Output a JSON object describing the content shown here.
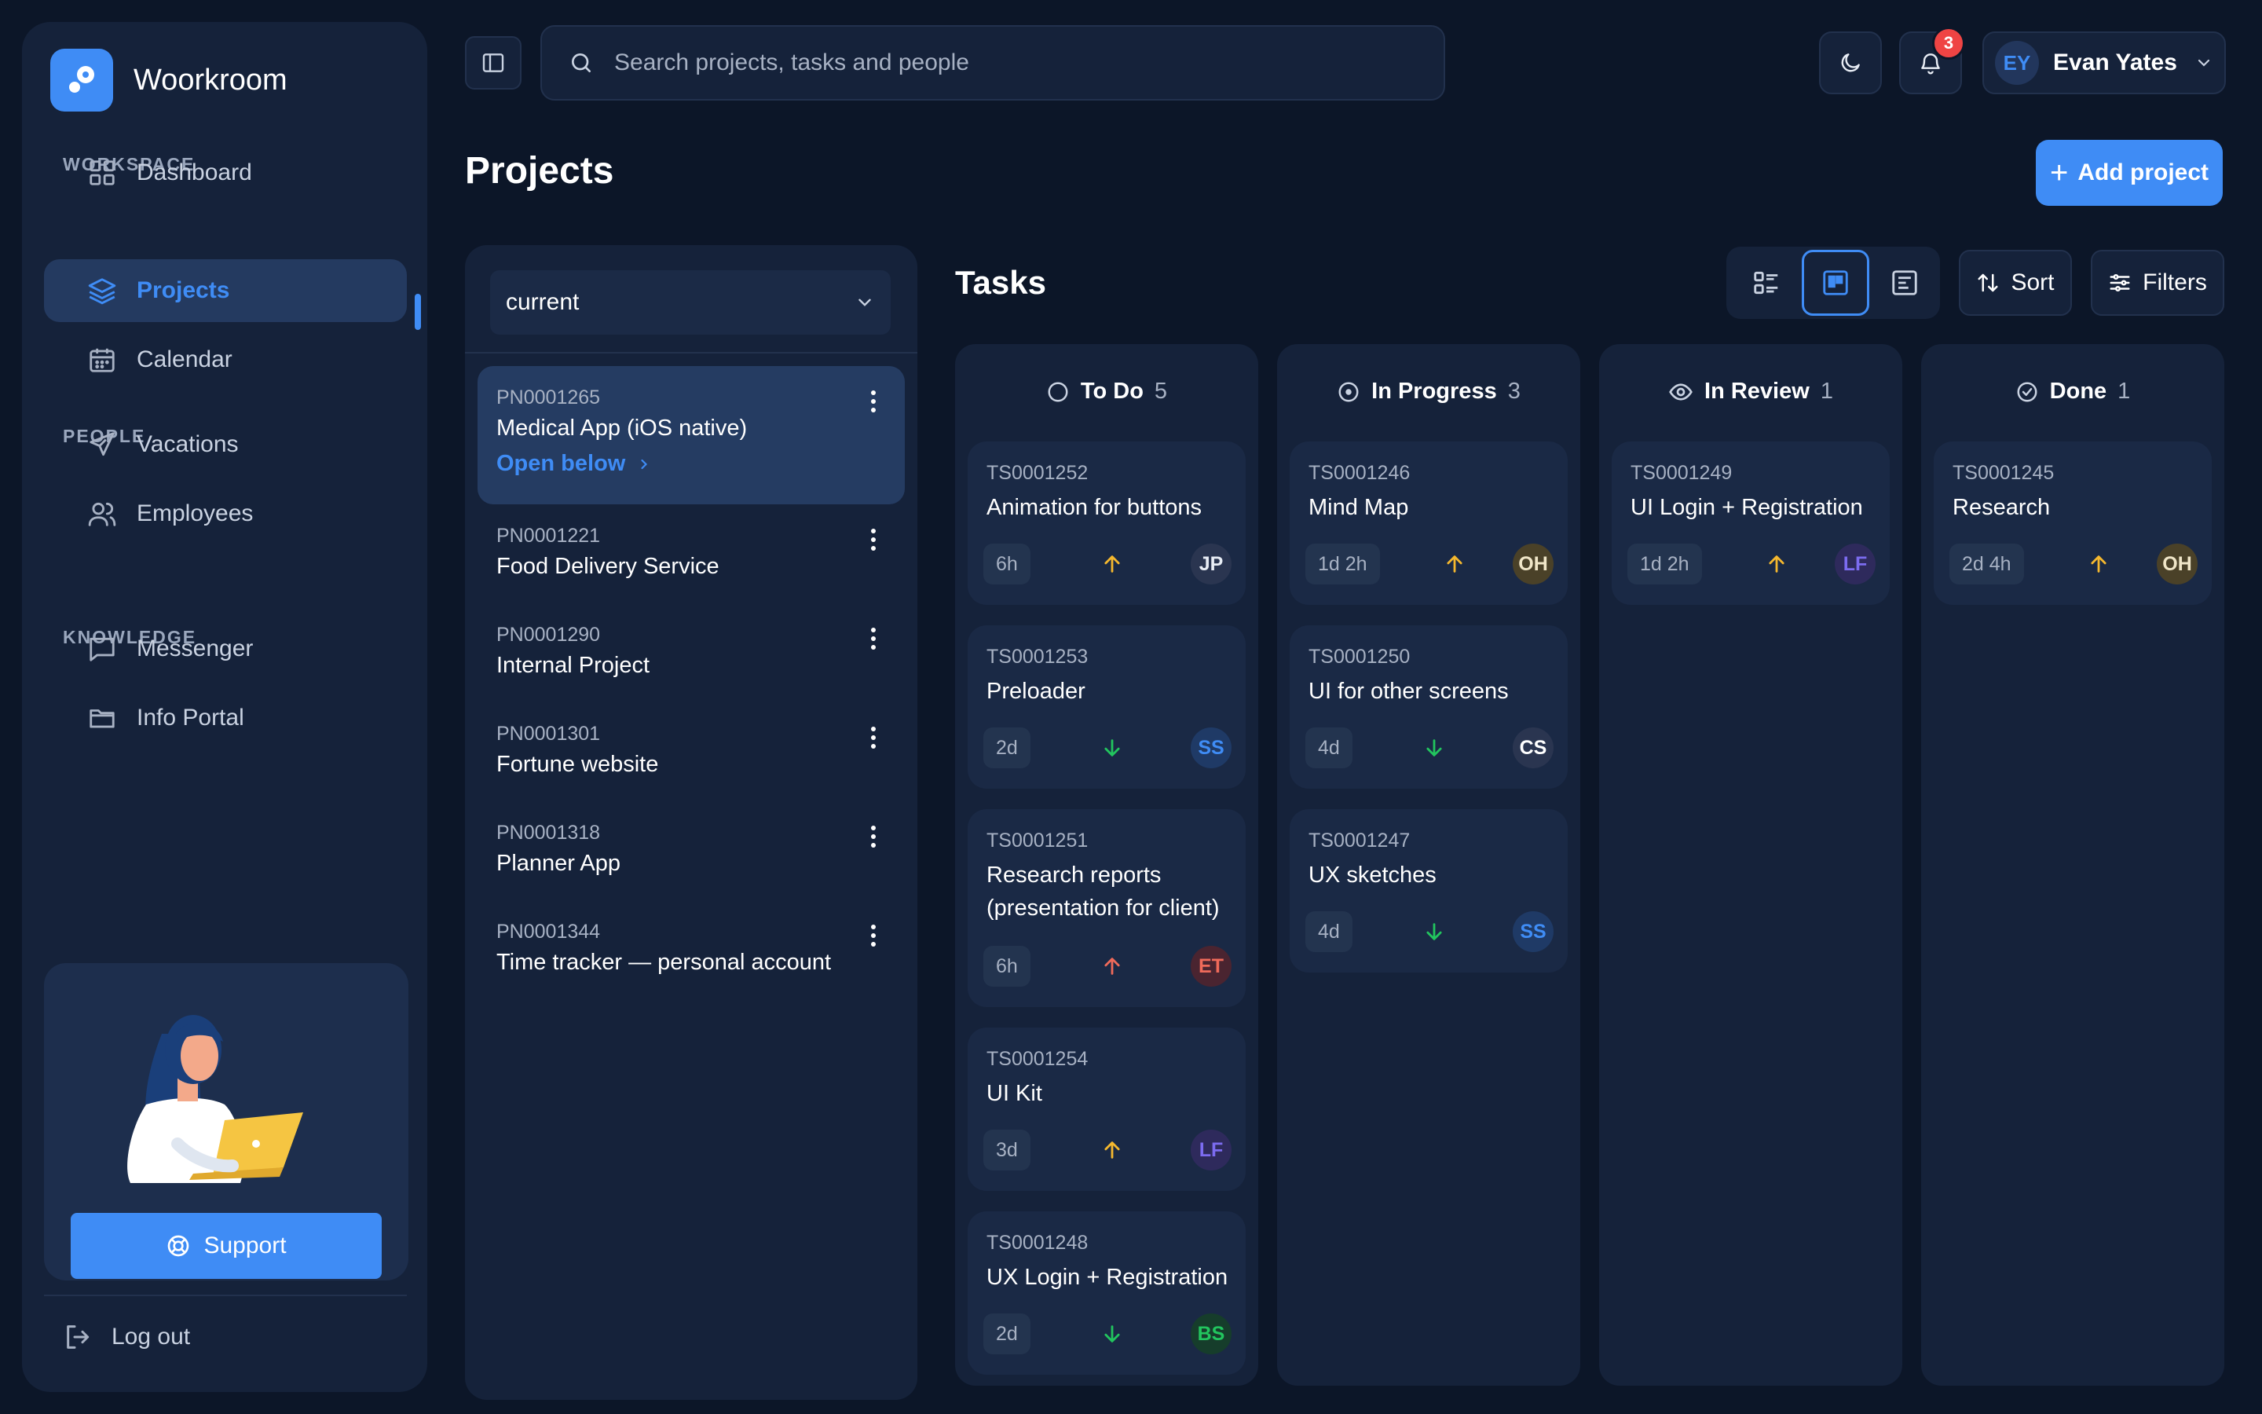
{
  "app": {
    "name": "Woorkroom"
  },
  "sidebar": {
    "sections": [
      {
        "label": "WORKSPACE"
      },
      {
        "label": "PEOPLE"
      },
      {
        "label": "KNOWLEDGE"
      }
    ],
    "items": [
      {
        "label": "Dashboard",
        "icon": "dashboard-icon"
      },
      {
        "label": "Projects",
        "icon": "layers-icon",
        "active": true
      },
      {
        "label": "Calendar",
        "icon": "calendar-icon"
      },
      {
        "label": "Vacations",
        "icon": "plane-icon"
      },
      {
        "label": "Employees",
        "icon": "users-icon"
      },
      {
        "label": "Messenger",
        "icon": "message-icon"
      },
      {
        "label": "Info Portal",
        "icon": "folder-icon"
      }
    ],
    "support_label": "Support",
    "logout_label": "Log out"
  },
  "topbar": {
    "search_placeholder": "Search projects, tasks and people",
    "notifications_count": "3",
    "user": {
      "initials": "EY",
      "name": "Evan Yates"
    }
  },
  "page": {
    "title": "Projects",
    "add_button": "Add project"
  },
  "projects": {
    "filter_value": "current",
    "open_below_label": "Open below",
    "list": [
      {
        "id": "PN0001265",
        "name": "Medical App (iOS native)",
        "active": true
      },
      {
        "id": "PN0001221",
        "name": "Food Delivery Service"
      },
      {
        "id": "PN0001290",
        "name": "Internal Project"
      },
      {
        "id": "PN0001301",
        "name": "Fortune website"
      },
      {
        "id": "PN0001318",
        "name": "Planner App"
      },
      {
        "id": "PN0001344",
        "name": "Time tracker — personal account"
      }
    ]
  },
  "tasks": {
    "title": "Tasks",
    "sort_label": "Sort",
    "filters_label": "Filters",
    "colors": {
      "up": "#f5b82e",
      "down": "#22c55e",
      "high": "#ef6a5a",
      "accent": "#3f8cf5"
    },
    "columns": [
      {
        "title": "To Do",
        "count": "5",
        "icon": "circle-icon",
        "cards": [
          {
            "id": "TS0001252",
            "name": "Animation for buttons",
            "estimate": "6h",
            "priority": "up",
            "assignee": "JP"
          },
          {
            "id": "TS0001253",
            "name": "Preloader",
            "estimate": "2d",
            "priority": "down",
            "assignee": "SS"
          },
          {
            "id": "TS0001251",
            "name": "Research reports (presentation for client)",
            "estimate": "6h",
            "priority": "high",
            "assignee": "ET"
          },
          {
            "id": "TS0001254",
            "name": "UI Kit",
            "estimate": "3d",
            "priority": "up",
            "assignee": "LF"
          },
          {
            "id": "TS0001248",
            "name": "UX Login + Registration",
            "estimate": "2d",
            "priority": "down",
            "assignee": "BS"
          }
        ]
      },
      {
        "title": "In Progress",
        "count": "3",
        "icon": "progress-icon",
        "cards": [
          {
            "id": "TS0001246",
            "name": "Mind Map",
            "estimate": "1d 2h",
            "priority": "up",
            "assignee": "OH"
          },
          {
            "id": "TS0001250",
            "name": "UI for other screens",
            "estimate": "4d",
            "priority": "down",
            "assignee": "CS"
          },
          {
            "id": "TS0001247",
            "name": "UX sketches",
            "estimate": "4d",
            "priority": "down",
            "assignee": "SS"
          }
        ]
      },
      {
        "title": "In Review",
        "count": "1",
        "icon": "eye-icon",
        "cards": [
          {
            "id": "TS0001249",
            "name": "UI Login + Registration",
            "estimate": "1d 2h",
            "priority": "up",
            "assignee": "LF"
          }
        ]
      },
      {
        "title": "Done",
        "count": "1",
        "icon": "check-circle-icon",
        "cards": [
          {
            "id": "TS0001245",
            "name": "Research",
            "estimate": "2d 4h",
            "priority": "up",
            "assignee": "OH"
          }
        ]
      }
    ]
  }
}
